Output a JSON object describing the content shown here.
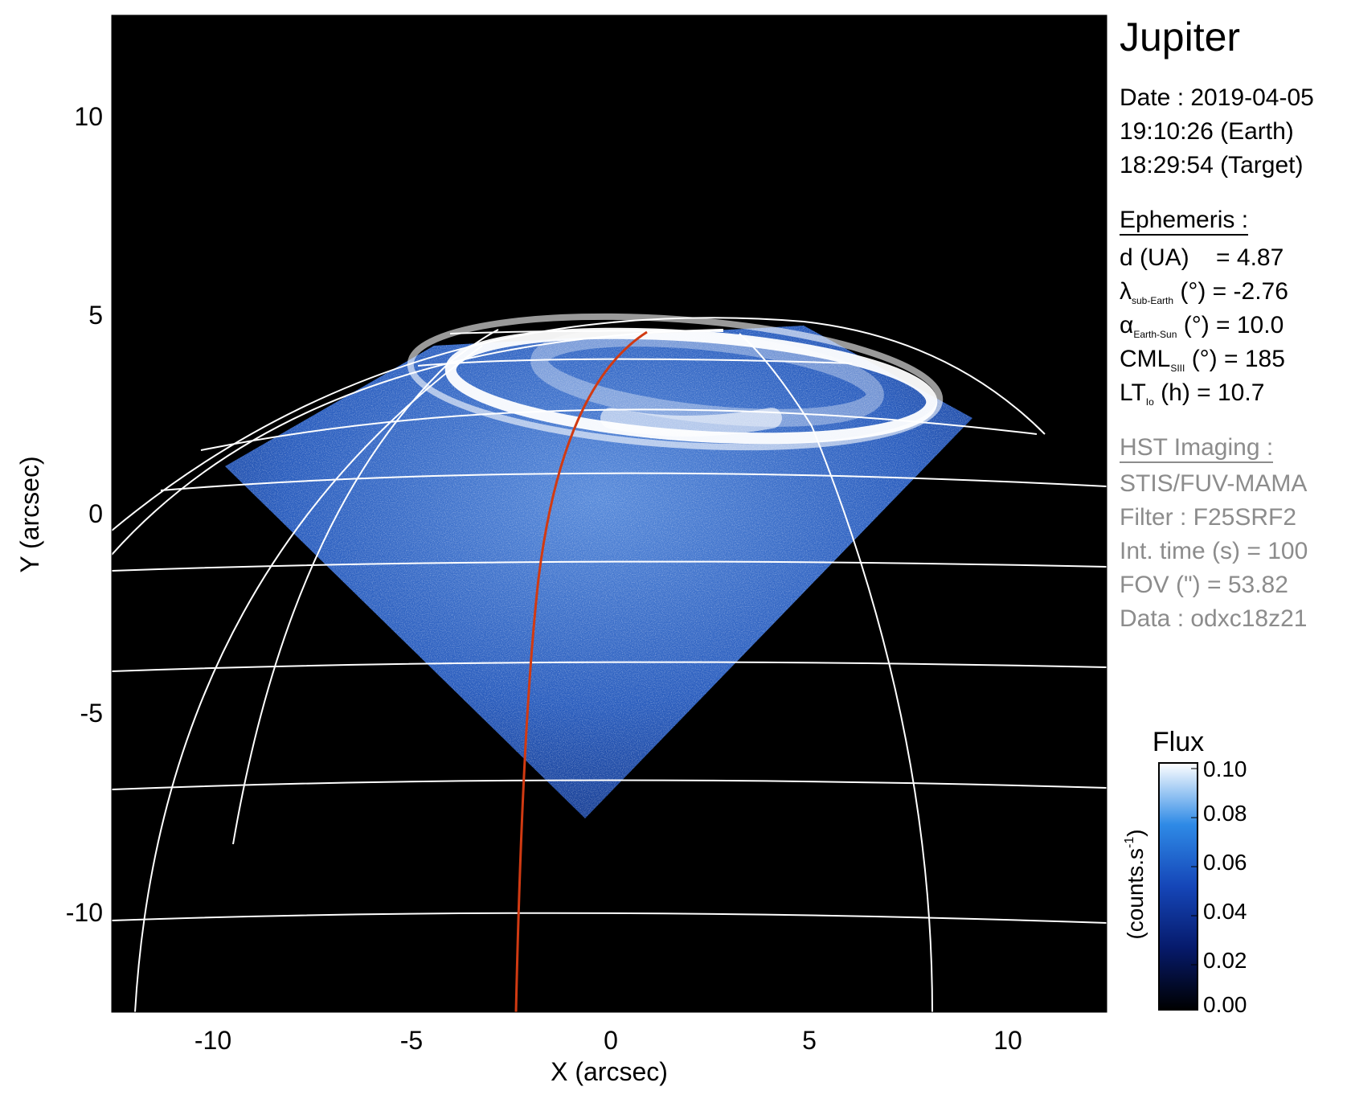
{
  "figure": {
    "title": "Jupiter",
    "observation": {
      "date_line": "Date : 2019-04-05",
      "time_earth": "19:10:26 (Earth)",
      "time_target": "18:29:54 (Target)"
    },
    "ephemeris": {
      "heading": "Ephemeris :",
      "distance": {
        "label": "d (UA)",
        "eq": "= 4.87"
      },
      "sub_earth_lat": {
        "sym": "λ",
        "sub": "sub-Earth",
        "rest": " (°) = -2.76"
      },
      "phase_angle": {
        "sym": "α",
        "sub": "Earth-Sun",
        "rest": " (°) = 10.0"
      },
      "cml": {
        "sym": "CML",
        "sub": "SIII",
        "rest": " (°) = 185"
      },
      "local_time": {
        "sym": "LT",
        "sub": "Io",
        "rest": " (h) = 10.7"
      }
    },
    "hst": {
      "heading": "HST Imaging :",
      "instrument": "STIS/FUV-MAMA",
      "filter": "Filter : F25SRF2",
      "int_time": "Int. time (s) = 100",
      "fov": "FOV (\") = 53.82",
      "data": "Data : odxc18z21"
    },
    "axes": {
      "xlabel": "X (arcsec)",
      "ylabel": "Y (arcsec)",
      "xlim": [
        -12.5,
        12.5
      ],
      "ylim": [
        -12.5,
        12.5
      ],
      "xticks": [
        "-10",
        "-5",
        "0",
        "5",
        "10"
      ],
      "yticks": [
        "10",
        "5",
        "0",
        "-5",
        "-10"
      ]
    },
    "colorbar": {
      "title": "Flux",
      "unit_main": "(counts.s",
      "unit_sup": "-1",
      "unit_end": ")",
      "ticks": [
        "0.10",
        "0.08",
        "0.06",
        "0.04",
        "0.02",
        "0.00"
      ],
      "range": [
        0.0,
        0.1
      ]
    },
    "colors": {
      "background": "#000000",
      "grid": "#ffffff",
      "meridian": "#d13a12",
      "aurora": "#ffffff",
      "emission": "#2e6fd1"
    }
  }
}
